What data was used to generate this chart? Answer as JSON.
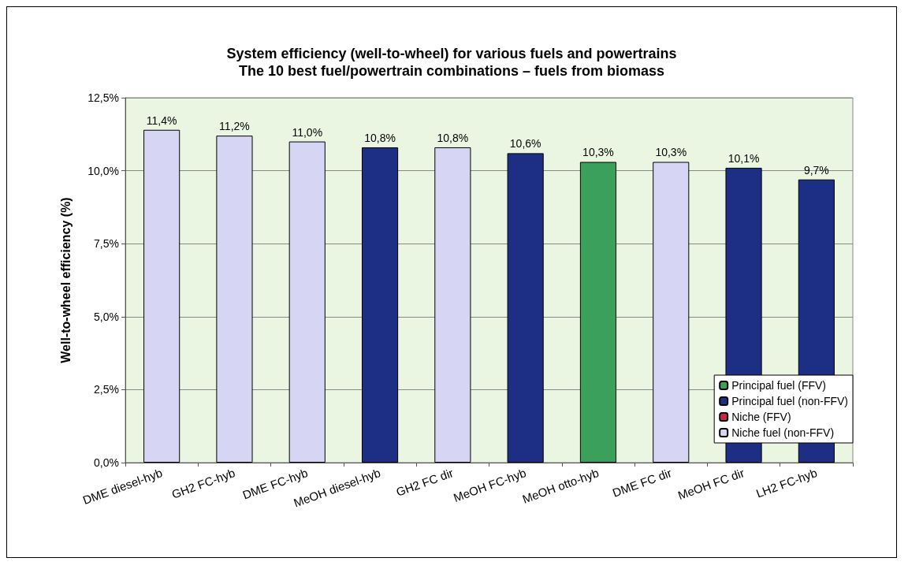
{
  "chart_data": {
    "type": "bar",
    "title": "System efficiency (well-to-wheel) for various fuels and powertrains",
    "subtitle": "The 10 best fuel/powertrain combinations – fuels from biomass",
    "ylabel": "Well-to-wheel efficiency (%)",
    "categories": [
      "DME diesel-hyb",
      "GH2 FC-hyb",
      "DME FC-hyb",
      "MeOH diesel-hyb",
      "GH2 FC dir",
      "MeOH FC-hyb",
      "MeOH otto-hyb",
      "DME FC dir",
      "MeOH FC dir",
      "LH2 FC-hyb"
    ],
    "stacked": true,
    "series": [
      {
        "name": "Principal fuel (FFV)",
        "color": "#3aa05a",
        "values": [
          null,
          null,
          null,
          null,
          null,
          null,
          10.3,
          null,
          null,
          null
        ],
        "value_labels": [
          null,
          null,
          null,
          null,
          null,
          null,
          "10,3%",
          null,
          null,
          null
        ]
      },
      {
        "name": "Principal fuel (non-FFV)",
        "color": "#1c2f85",
        "values": [
          null,
          null,
          null,
          10.8,
          null,
          10.6,
          null,
          null,
          10.1,
          9.7
        ],
        "value_labels": [
          null,
          null,
          null,
          "10,8%",
          null,
          "10,6%",
          null,
          null,
          "10,1%",
          "9,7%"
        ]
      },
      {
        "name": "Niche (FFV)",
        "color": "#c8284a",
        "values": [
          null,
          null,
          null,
          null,
          null,
          null,
          null,
          null,
          null,
          null
        ],
        "value_labels": [
          null,
          null,
          null,
          null,
          null,
          null,
          null,
          null,
          null,
          null
        ]
      },
      {
        "name": "Niche fuel (non-FFV)",
        "color": "#d6d6f4",
        "values": [
          11.4,
          11.2,
          11.0,
          null,
          10.8,
          null,
          null,
          10.3,
          null,
          null
        ],
        "value_labels": [
          "11,4%",
          "11,2%",
          "11,0%",
          null,
          "10,8%",
          null,
          null,
          "10,3%",
          null,
          null
        ]
      }
    ],
    "ylim": [
      0,
      12.5
    ],
    "yticks": [
      {
        "value": 0,
        "label": "0,0%"
      },
      {
        "value": 2.5,
        "label": "2,5%"
      },
      {
        "value": 5,
        "label": "5,0%"
      },
      {
        "value": 7.5,
        "label": "7,5%"
      },
      {
        "value": 10,
        "label": "10,0%"
      },
      {
        "value": 12.5,
        "label": "12,5%"
      }
    ],
    "grid": "y",
    "legend": "bottom right"
  }
}
